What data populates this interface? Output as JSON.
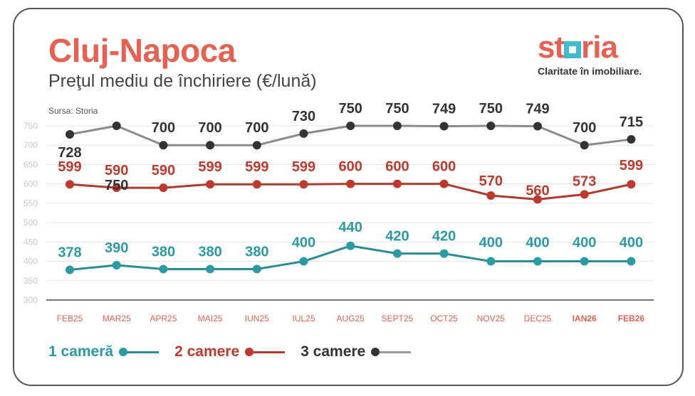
{
  "header": {
    "title": "Cluj-Napoca",
    "subtitle": "Preţul mediu de închiriere (€/lună)",
    "source": "Sursa: Storia"
  },
  "logo": {
    "word_before": "st",
    "word_after": "ria",
    "tagline": "Claritate în imobiliare."
  },
  "colors": {
    "accent": "#e8604f",
    "teal": "#2a9aa6",
    "red": "#c0392b",
    "dark": "#333333",
    "gray_line": "#8a8a8a",
    "brand_square": "#3cbccc"
  },
  "chart_data": {
    "type": "line",
    "categories": [
      "FEB25",
      "MAR25",
      "APR25",
      "MAI25",
      "IUN25",
      "IUL25",
      "AUG25",
      "SEPT25",
      "OCT25",
      "NOV25",
      "DEC25",
      "IAN26",
      "FEB26"
    ],
    "bold_categories": [
      "IAN26",
      "FEB26"
    ],
    "yticks": [
      750,
      700,
      650,
      600,
      550,
      500,
      450,
      400,
      350,
      300
    ],
    "ylim": [
      300,
      750
    ],
    "grid": true,
    "legend_placement": "bottom-left",
    "series": [
      {
        "name": "1 cameră",
        "color": "#2a9aa6",
        "line_color": "#2a8c96",
        "values": [
          378,
          390,
          380,
          380,
          380,
          400,
          440,
          420,
          420,
          400,
          400,
          400,
          400
        ]
      },
      {
        "name": "2 camere",
        "color": "#c0392b",
        "line_color": "#b03a30",
        "values": [
          599,
          590,
          590,
          599,
          599,
          599,
          600,
          600,
          600,
          570,
          560,
          573,
          599
        ]
      },
      {
        "name": "3 camere",
        "color": "#333333",
        "line_color": "#8a8a8a",
        "values": [
          728,
          750,
          700,
          700,
          700,
          730,
          750,
          750,
          749,
          750,
          749,
          700,
          715
        ]
      }
    ]
  }
}
